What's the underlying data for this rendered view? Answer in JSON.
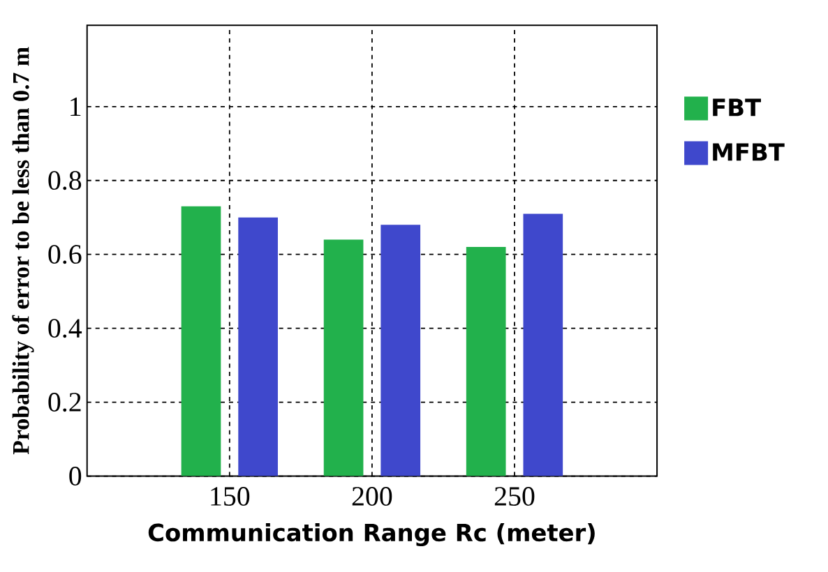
{
  "chart_data": {
    "type": "bar",
    "xlabel": "Communication Range Rc (meter)",
    "ylabel": "Probability of error to be less than 0.7 m",
    "categories": [
      "150",
      "200",
      "250"
    ],
    "series": [
      {
        "name": "FBT",
        "color": "#22b14c",
        "values": [
          0.73,
          0.64,
          0.62
        ]
      },
      {
        "name": "MFBT",
        "color": "#3f48cc",
        "values": [
          0.7,
          0.68,
          0.71
        ]
      }
    ],
    "ylim": [
      0,
      1.22
    ],
    "yticks": [
      0,
      0.2,
      0.4,
      0.6,
      0.8,
      1
    ],
    "grid": true,
    "legend": "right"
  }
}
